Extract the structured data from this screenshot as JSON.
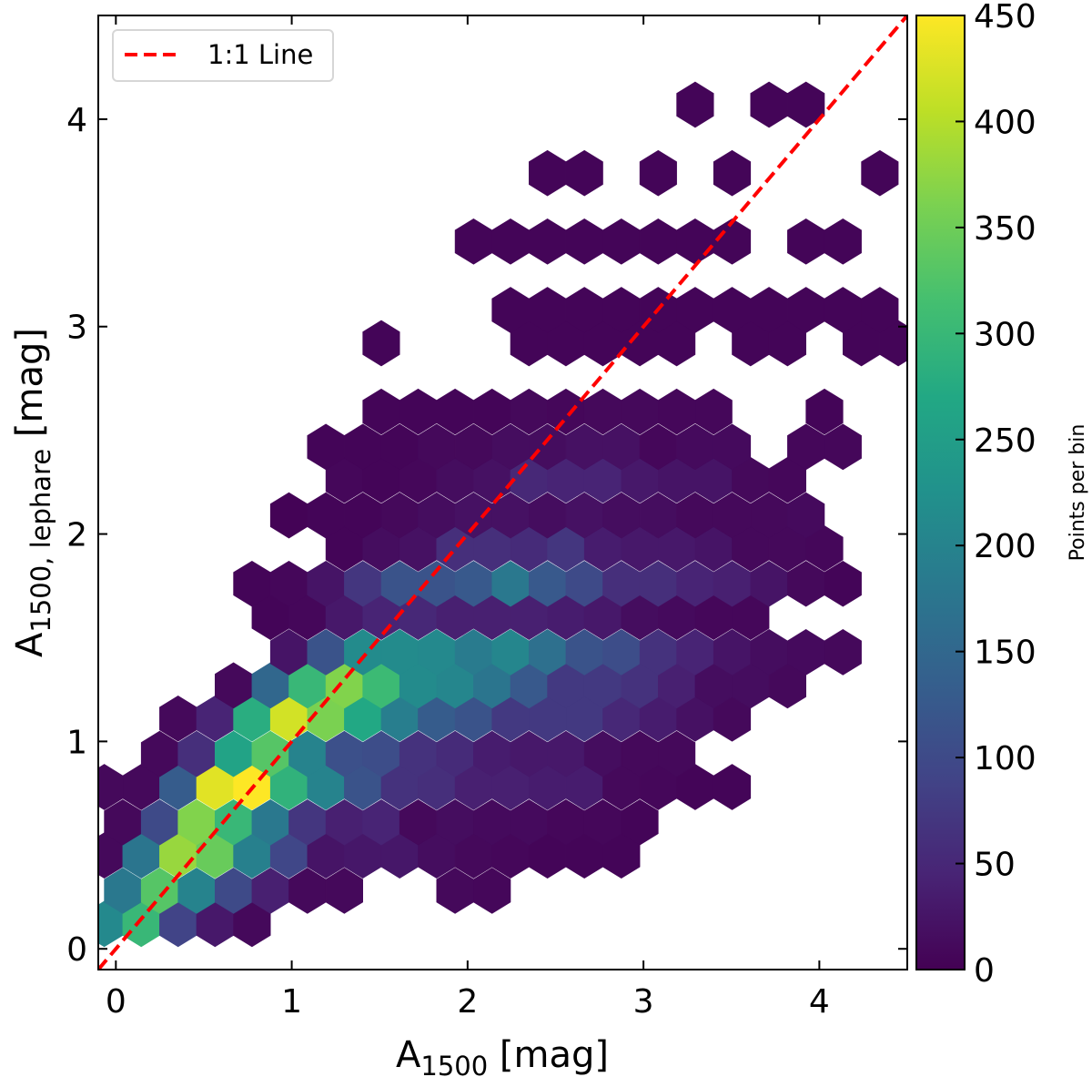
{
  "chart_data": {
    "type": "heatmap",
    "binning": "hexagonal",
    "colormap": "viridis",
    "xlabel": {
      "symbol": "A",
      "subscript": "1500",
      "unit": " [mag]"
    },
    "ylabel": {
      "symbol": "A",
      "subscript": "1500, lephare",
      "unit": " [mag]"
    },
    "xlim": [
      -0.1,
      4.5
    ],
    "ylim": [
      -0.1,
      4.5
    ],
    "xticks": [
      "0",
      "1",
      "2",
      "3",
      "4"
    ],
    "yticks": [
      "0",
      "1",
      "2",
      "3",
      "4"
    ],
    "grid": false,
    "colorbar": {
      "label": "Points per bin",
      "range": [
        0,
        450
      ],
      "ticks": [
        "0",
        "50",
        "100",
        "150",
        "200",
        "250",
        "300",
        "350",
        "400",
        "450"
      ]
    },
    "reference_line": {
      "name": "1:1 Line",
      "color": "#ff0000",
      "style": "dashed",
      "slope": 1,
      "intercept": 0
    },
    "legend": {
      "position": "top-left",
      "entries": [
        "1:1 Line"
      ]
    },
    "hex_spacing_x": 0.21,
    "rows": [
      {
        "y": 0.12,
        "x0": -0.066,
        "counts": [
          210,
          300,
          90,
          30,
          10
        ]
      },
      {
        "y": 0.28,
        "x0": 0.039,
        "counts": [
          180,
          330,
          200,
          100,
          40,
          10,
          10,
          null,
          null,
          10,
          8
        ]
      },
      {
        "y": 0.45,
        "x0": -0.066,
        "counts": [
          10,
          175,
          380,
          345,
          195,
          95,
          25,
          28,
          28,
          15,
          10,
          8,
          5,
          5,
          5
        ]
      },
      {
        "y": 0.61,
        "x0": 0.039,
        "counts": [
          10,
          100,
          365,
          300,
          180,
          70,
          40,
          45,
          10,
          15,
          12,
          12,
          8,
          8,
          5
        ]
      },
      {
        "y": 0.78,
        "x0": -0.066,
        "counts": [
          10,
          10,
          130,
          430,
          450,
          290,
          200,
          115,
          65,
          60,
          40,
          40,
          35,
          35,
          10,
          8,
          5,
          5
        ]
      },
      {
        "y": 0.94,
        "x0": 0.249,
        "counts": [
          10,
          60,
          260,
          330,
          200,
          110,
          105,
          65,
          55,
          35,
          30,
          30,
          15,
          10,
          10
        ]
      },
      {
        "y": 1.11,
        "x0": 0.354,
        "counts": [
          10,
          45,
          280,
          420,
          360,
          270,
          190,
          130,
          115,
          75,
          75,
          75,
          50,
          35,
          20,
          10
        ]
      },
      {
        "y": 1.27,
        "x0": 0.669,
        "counts": [
          10,
          150,
          300,
          365,
          305,
          215,
          205,
          175,
          125,
          75,
          75,
          65,
          40,
          15,
          15,
          10
        ]
      },
      {
        "y": 1.43,
        "x0": 0.984,
        "counts": [
          25,
          115,
          215,
          215,
          210,
          185,
          205,
          165,
          115,
          105,
          65,
          45,
          25,
          15,
          12,
          10
        ]
      },
      {
        "y": 1.6,
        "x0": 0.879,
        "counts": [
          5,
          8,
          30,
          45,
          50,
          40,
          40,
          40,
          35,
          30,
          15,
          12,
          8,
          8
        ]
      },
      {
        "y": 1.76,
        "x0": 0.774,
        "counts": [
          5,
          8,
          25,
          70,
          115,
          115,
          125,
          180,
          125,
          100,
          60,
          60,
          45,
          40,
          25,
          10,
          5
        ]
      },
      {
        "y": 1.93,
        "x0": 1.299,
        "counts": [
          5,
          15,
          20,
          60,
          60,
          55,
          70,
          35,
          30,
          30,
          25,
          10,
          10,
          8
        ]
      },
      {
        "y": 2.09,
        "x0": 0.984,
        "counts": [
          3,
          5,
          5,
          10,
          15,
          20,
          20,
          15,
          20,
          15,
          15,
          10,
          10,
          10,
          12
        ]
      },
      {
        "y": 2.26,
        "x0": 1.299,
        "counts": [
          8,
          5,
          8,
          15,
          20,
          50,
          45,
          45,
          30,
          25,
          25,
          10,
          8
        ]
      },
      {
        "y": 2.42,
        "x0": 1.194,
        "counts": [
          5,
          5,
          5,
          10,
          10,
          15,
          15,
          20,
          20,
          8,
          12,
          12,
          null,
          8,
          8
        ]
      },
      {
        "y": 2.59,
        "x0": 1.509,
        "counts": [
          5,
          5,
          5,
          5,
          10,
          8,
          10,
          10,
          8,
          8,
          null,
          null,
          5
        ]
      },
      {
        "y": 2.92,
        "x0": 1.509,
        "counts": [
          5,
          null,
          null,
          null,
          5,
          5,
          5,
          5,
          5,
          null,
          5,
          5,
          null,
          5,
          5
        ]
      },
      {
        "y": 3.08,
        "x0": 2.244,
        "counts": [
          5,
          5,
          5,
          5,
          5,
          5,
          5,
          5,
          5,
          5,
          5
        ]
      },
      {
        "y": 3.41,
        "x0": 2.034,
        "counts": [
          5,
          5,
          5,
          5,
          5,
          5,
          5,
          5,
          null,
          5,
          5
        ]
      },
      {
        "y": 3.74,
        "x0": 2.454,
        "counts": [
          5,
          5,
          null,
          5,
          null,
          5,
          null,
          null,
          null,
          5
        ]
      },
      {
        "y": 4.07,
        "x0": 3.294,
        "counts": [
          5,
          null,
          5,
          5
        ]
      }
    ]
  }
}
